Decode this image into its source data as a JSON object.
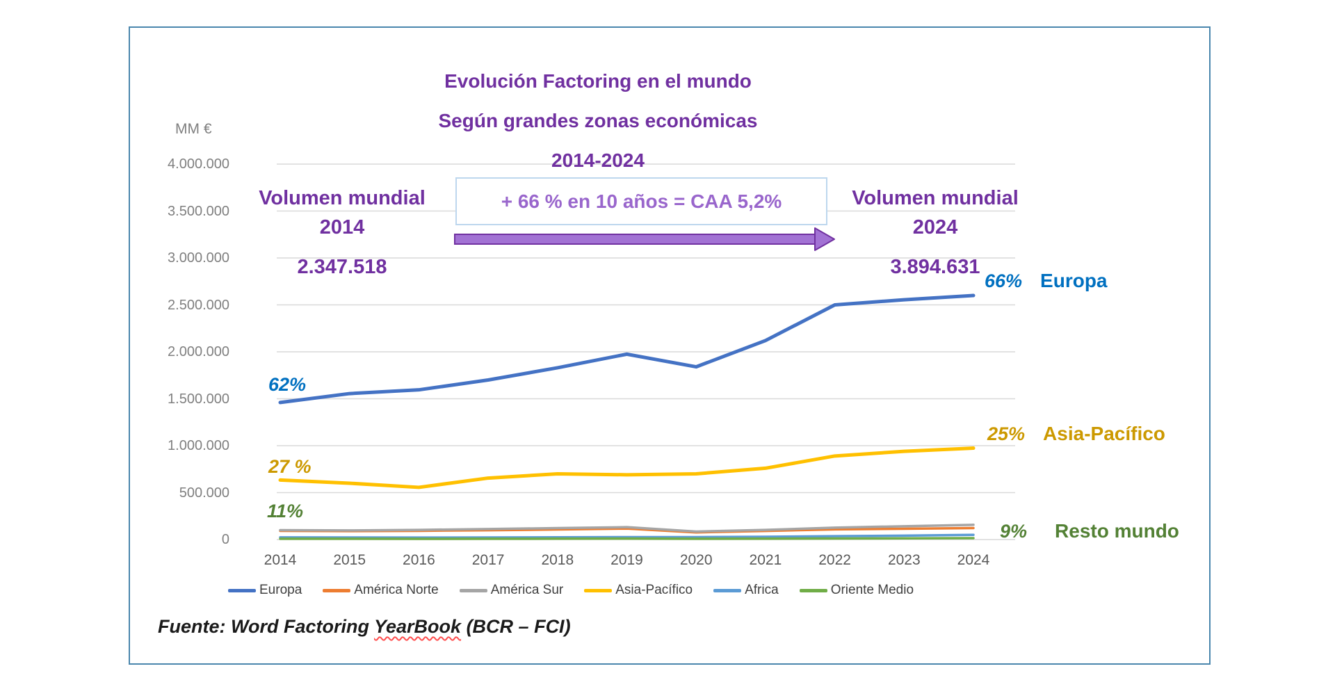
{
  "panel": {
    "border_color": "#4a86ad"
  },
  "title": {
    "line1": "Evolución Factoring en el mundo",
    "line2": "Según grandes zonas económicas",
    "line3": "2014-2024",
    "color": "#7030a0"
  },
  "axis": {
    "unit_label": "MM €",
    "y_tick_labels": [
      "4.000.000",
      "3.500.000",
      "3.000.000",
      "2.500.000",
      "2.000.000",
      "1.500.000",
      "1.000.000",
      "500.000",
      "0"
    ],
    "y_tick_values": [
      4000000,
      3500000,
      3000000,
      2500000,
      2000000,
      1500000,
      1000000,
      500000,
      0
    ]
  },
  "annotations": {
    "volume_2014": {
      "line1": "Volumen mundial",
      "line2": "2014",
      "line3": "2.347.518"
    },
    "volume_2024": {
      "line1": "Volumen mundial",
      "line2": "2024",
      "line3": "3.894.631"
    },
    "growth_box": {
      "text": "+ 66 % en 10 años = CAA 5,2%",
      "text_color": "#9966cc",
      "border_color": "#bdd7ee"
    },
    "arrow": {
      "fill": "#a272d4",
      "border": "#7030a0"
    },
    "europa_start_pct": "62%",
    "europa_end_pct": "66%",
    "europa_label": "Europa",
    "asia_start_pct": "27 %",
    "asia_end_pct": "25%",
    "asia_label": "Asia-Pacífico",
    "resto_start_pct": "11%",
    "resto_end_pct": "9%",
    "resto_label": "Resto mundo",
    "blue_label_color": "#0070c0",
    "gold_label_color": "#cc9900",
    "green_label_color": "#538135"
  },
  "source": {
    "prefix": "Fuente: Word Factoring ",
    "underlined": "YearBook",
    "suffix": " (BCR – FCI)"
  },
  "chart_data": {
    "type": "line",
    "title": "Evolución Factoring en el mundo — Según grandes zonas económicas 2014-2024",
    "unit": "MM €",
    "categories": [
      2014,
      2015,
      2016,
      2017,
      2018,
      2019,
      2020,
      2021,
      2022,
      2023,
      2024
    ],
    "series": [
      {
        "name": "Europa",
        "color": "#4472c4",
        "values": [
          1460000,
          1555000,
          1595000,
          1700000,
          1830000,
          1975000,
          1840000,
          2120000,
          2500000,
          2555000,
          2600000
        ]
      },
      {
        "name": "América Norte",
        "color": "#ed7d31",
        "values": [
          93000,
          90000,
          93000,
          99000,
          107000,
          117000,
          76000,
          92000,
          108000,
          115000,
          122000
        ]
      },
      {
        "name": "América Sur",
        "color": "#a5a5a5",
        "values": [
          100000,
          97000,
          103000,
          112000,
          122000,
          132000,
          85000,
          103000,
          127000,
          142000,
          157000
        ]
      },
      {
        "name": "Asia-Pacífico",
        "color": "#ffc000",
        "values": [
          634000,
          600000,
          556000,
          655000,
          700000,
          690000,
          700000,
          760000,
          890000,
          940000,
          974000
        ]
      },
      {
        "name": "Africa",
        "color": "#5b9bd5",
        "values": [
          23000,
          22000,
          21000,
          22000,
          24000,
          26000,
          26000,
          30000,
          36000,
          42000,
          50000
        ]
      },
      {
        "name": "Oriente Medio",
        "color": "#70ad47",
        "values": [
          8000,
          8000,
          7000,
          8000,
          9000,
          10000,
          8000,
          9000,
          11000,
          13000,
          15000
        ]
      }
    ],
    "ylim": [
      0,
      4000000
    ],
    "grid": true,
    "legend_position": "bottom",
    "world_total_2014": "2.347.518",
    "world_total_2024": "3.894.631",
    "growth_note": "+ 66 % en 10 años = CAA 5,2%"
  }
}
